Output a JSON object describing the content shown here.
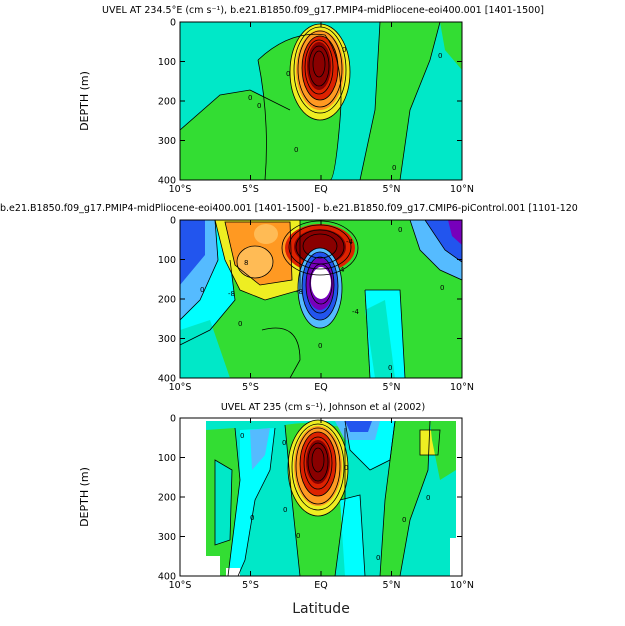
{
  "chart_data": [
    {
      "type": "contour",
      "title": "UVEL AT 234.5°E (cm s⁻¹), b.e21.B1850.f09_g17.PMIP4-midPliocene-eoi400.001 [1401-1500]",
      "ylabel": "DEPTH (m)",
      "xlabel": "",
      "x_ticks": [
        "10°S",
        "5°S",
        "EQ",
        "5°N",
        "10°N"
      ],
      "y_ticks": [
        "0",
        "100",
        "200",
        "300",
        "400"
      ],
      "xlim": [
        -10,
        10
      ],
      "ylim": [
        400,
        0
      ],
      "contour_labels": [
        "0",
        "0",
        "0",
        "0",
        "0",
        "0",
        "0"
      ],
      "core": {
        "lat": 0,
        "depth": 85,
        "max": 100
      }
    },
    {
      "type": "contour",
      "title": "b.e21.B1850.f09_g17.PMIP4-midPliocene-eoi400.001 [1401-1500] - b.e21.B1850.f09_g17.CMIP6-piControl.001 [1101-120",
      "ylabel": "",
      "xlabel": "",
      "x_ticks": [
        "10°S",
        "5°S",
        "EQ",
        "5°N",
        "10°N"
      ],
      "y_ticks": [
        "0",
        "100",
        "200",
        "300",
        "400"
      ],
      "xlim": [
        -10,
        10
      ],
      "ylim": [
        400,
        0
      ],
      "contour_labels": [
        "8",
        "4",
        "-8",
        "0",
        "0",
        "-4",
        "0",
        "0",
        "0",
        "-8",
        "-4",
        "0"
      ],
      "features": [
        {
          "lat": 0,
          "depth": 70,
          "sign": "positive"
        },
        {
          "lat": 0,
          "depth": 170,
          "sign": "negative"
        }
      ]
    },
    {
      "type": "contour",
      "title": "UVEL AT 235 (cm s⁻¹), Johnson et al (2002)",
      "ylabel": "DEPTH (m)",
      "xlabel": "Latitude",
      "x_ticks": [
        "10°S",
        "5°S",
        "EQ",
        "5°N",
        "10°N"
      ],
      "y_ticks": [
        "0",
        "100",
        "200",
        "300",
        "400"
      ],
      "xlim": [
        -10,
        10
      ],
      "ylim": [
        400,
        0
      ],
      "contour_labels": [
        "0",
        "0",
        "0",
        "0",
        "0",
        "0",
        "0",
        "0",
        "0"
      ],
      "core": {
        "lat": 0,
        "depth": 90,
        "max": 100
      }
    }
  ],
  "colors": {
    "green": "#33dd33",
    "teal": "#00e8c8",
    "cyan": "#00ffff",
    "lightblue": "#55bbff",
    "blue": "#2255ee",
    "yellow": "#eeee22",
    "orange": "#ff9922",
    "red": "#dd2200",
    "darkred": "#8a0000",
    "purple": "#7700bb"
  }
}
